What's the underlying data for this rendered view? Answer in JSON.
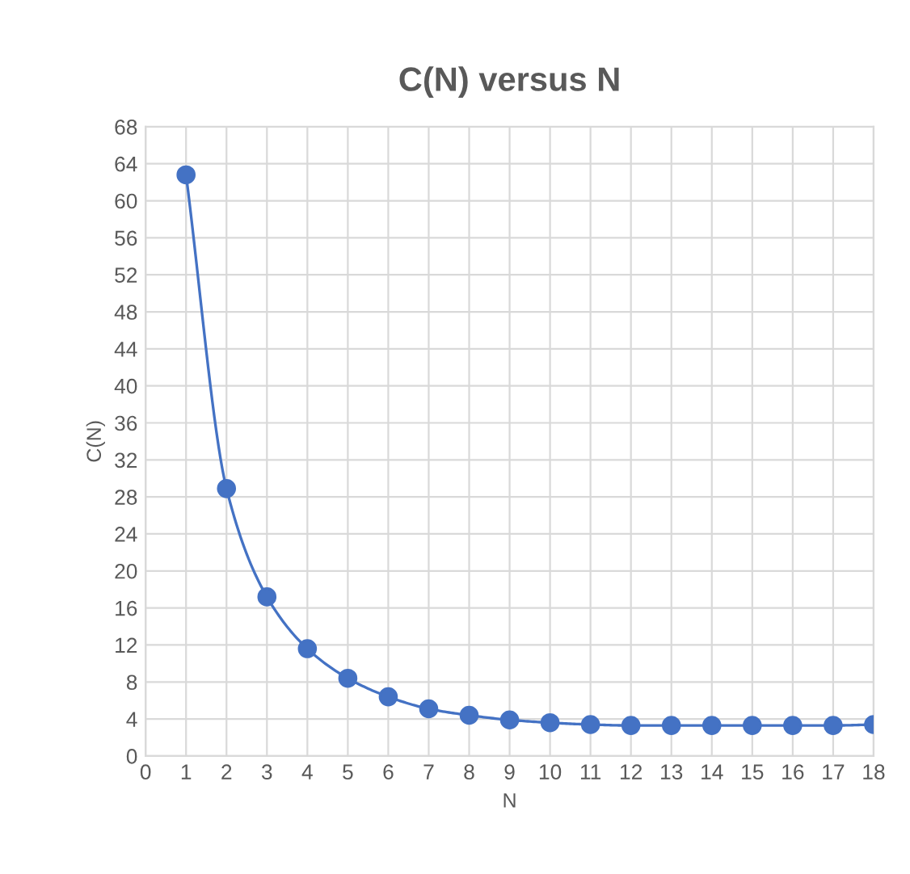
{
  "chart_data": {
    "type": "line",
    "title": "C(N) versus N",
    "xlabel": "N",
    "ylabel": "C(N)",
    "x": [
      1,
      2,
      3,
      4,
      5,
      6,
      7,
      8,
      9,
      10,
      11,
      12,
      13,
      14,
      15,
      16,
      17,
      18
    ],
    "series": [
      {
        "color": "#4472c4",
        "values": [
          62.8,
          28.9,
          17.2,
          11.6,
          8.4,
          6.4,
          5.1,
          4.4,
          3.9,
          3.6,
          3.4,
          3.3,
          3.3,
          3.3,
          3.3,
          3.3,
          3.3,
          3.4
        ]
      }
    ],
    "xlim": [
      0,
      18
    ],
    "xticks": [
      0,
      1,
      2,
      3,
      4,
      5,
      6,
      7,
      8,
      9,
      10,
      11,
      12,
      13,
      14,
      15,
      16,
      17,
      18
    ],
    "ylim": [
      0,
      68
    ],
    "yticks": [
      0,
      4,
      8,
      12,
      16,
      20,
      24,
      28,
      32,
      36,
      40,
      44,
      48,
      52,
      56,
      60,
      64,
      68
    ],
    "grid": true,
    "marker": "circle",
    "line_style": "solid",
    "legend": false
  }
}
